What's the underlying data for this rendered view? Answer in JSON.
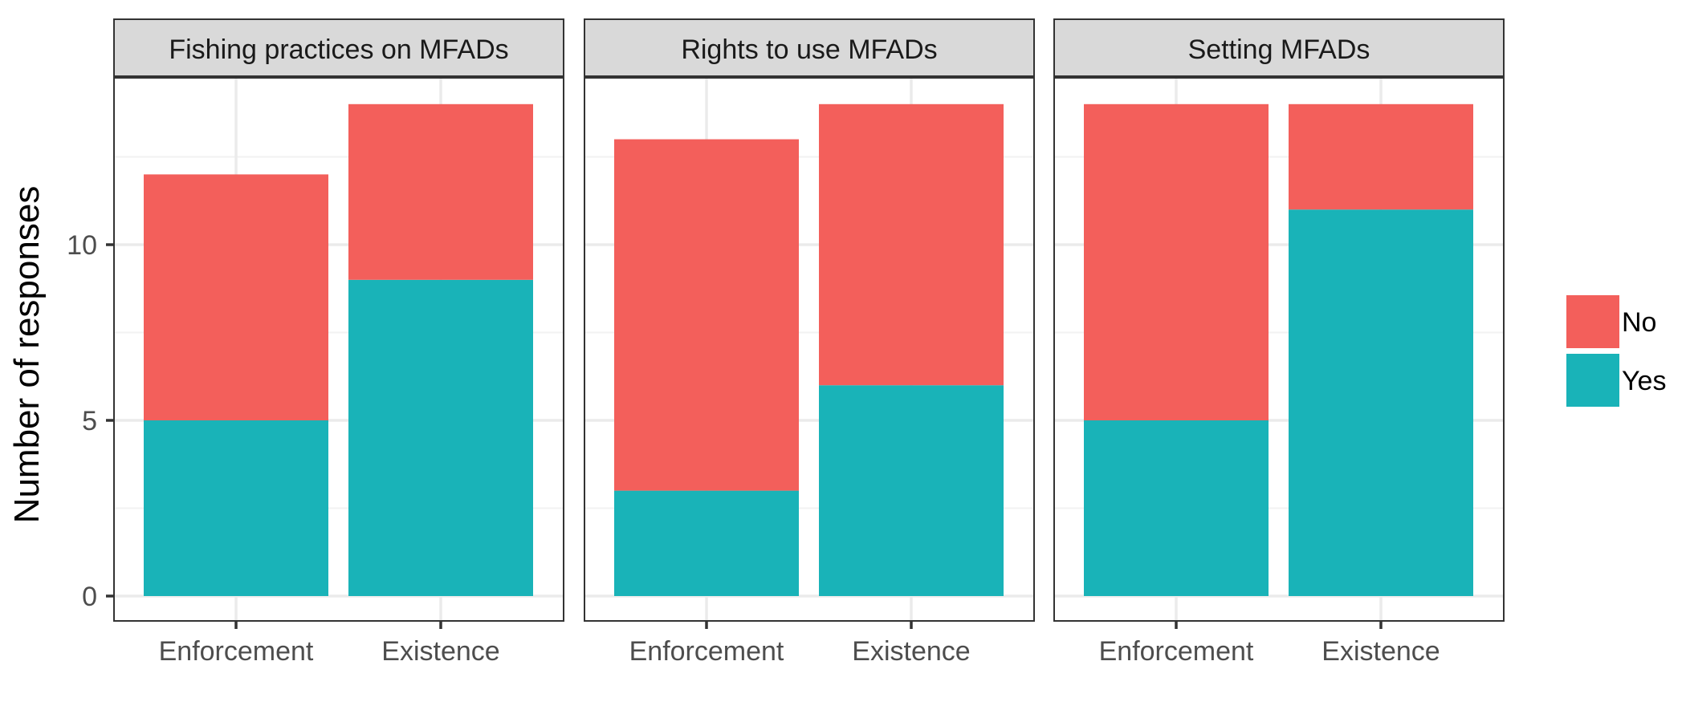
{
  "chart_data": {
    "type": "bar",
    "stacked": true,
    "ylabel": "Number of responses",
    "xlabel": "",
    "ylim": [
      0,
      14.6
    ],
    "yticks": [
      0,
      5,
      10
    ],
    "categories": [
      "Enforcement",
      "Existence"
    ],
    "legend": {
      "position": "right",
      "entries": [
        {
          "label": "No",
          "color": "#F8766D"
        },
        {
          "label": "Yes",
          "color": "#00BFC4"
        }
      ]
    },
    "colors": {
      "No": "#f35f5b",
      "Yes": "#19b3b8"
    },
    "panels": [
      {
        "title": "Fishing practices on MFADs",
        "series": [
          {
            "name": "Yes",
            "values": [
              5,
              9
            ]
          },
          {
            "name": "No",
            "values": [
              7,
              5
            ]
          }
        ]
      },
      {
        "title": "Rights to use MFADs",
        "series": [
          {
            "name": "Yes",
            "values": [
              3,
              6
            ]
          },
          {
            "name": "No",
            "values": [
              10,
              8
            ]
          }
        ]
      },
      {
        "title": "Setting MFADs",
        "series": [
          {
            "name": "Yes",
            "values": [
              5,
              11
            ]
          },
          {
            "name": "No",
            "values": [
              9,
              3
            ]
          }
        ]
      }
    ]
  }
}
